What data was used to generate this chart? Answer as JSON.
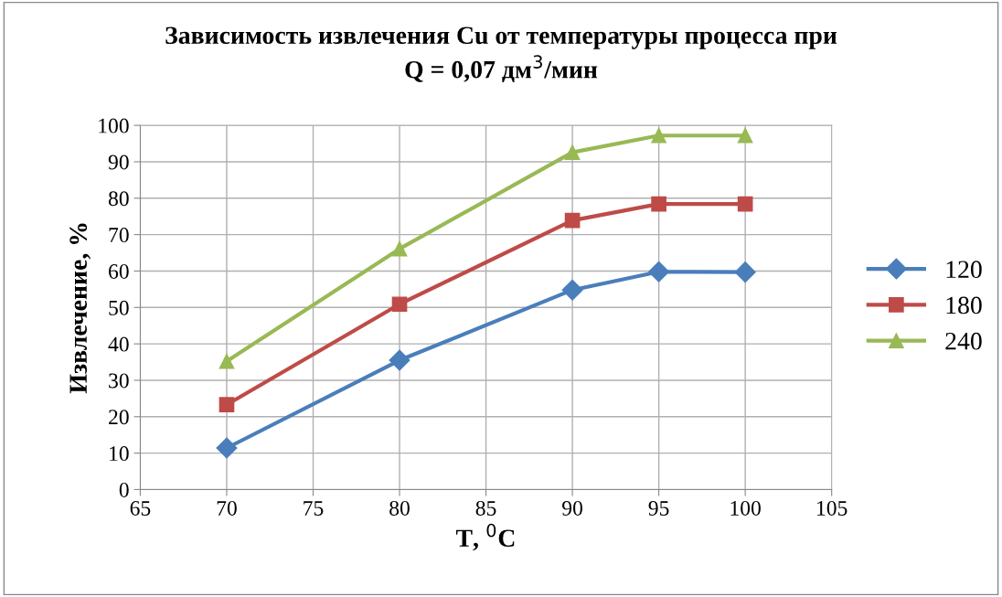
{
  "chart_data": {
    "type": "line",
    "title": "Зависимость извлечения Cu от температуры процесса при\nQ = 0,07 дм$^{3}$/мин",
    "xlabel": "T, $^{0}$C",
    "ylabel": "Извлечение, %",
    "x": [
      70,
      80,
      90,
      95,
      100
    ],
    "series": [
      {
        "name": "120",
        "color": "#4a7ebb",
        "marker": "diamond",
        "values": [
          11.4,
          35.5,
          54.8,
          59.8,
          59.7
        ]
      },
      {
        "name": "180",
        "color": "#be4b48",
        "marker": "square",
        "values": [
          23.3,
          50.9,
          73.9,
          78.4,
          78.4
        ]
      },
      {
        "name": "240",
        "color": "#98b954",
        "marker": "triangle",
        "values": [
          35.2,
          66.1,
          92.6,
          97.2,
          97.2
        ]
      }
    ],
    "xlim": [
      65,
      105
    ],
    "xticks": [
      65,
      70,
      75,
      80,
      85,
      90,
      95,
      100,
      105
    ],
    "ylim": [
      0,
      100
    ],
    "yticks": [
      0,
      10,
      20,
      30,
      40,
      50,
      60,
      70,
      80,
      90,
      100
    ],
    "grid": true,
    "legend": "right",
    "line_style": "solid"
  }
}
